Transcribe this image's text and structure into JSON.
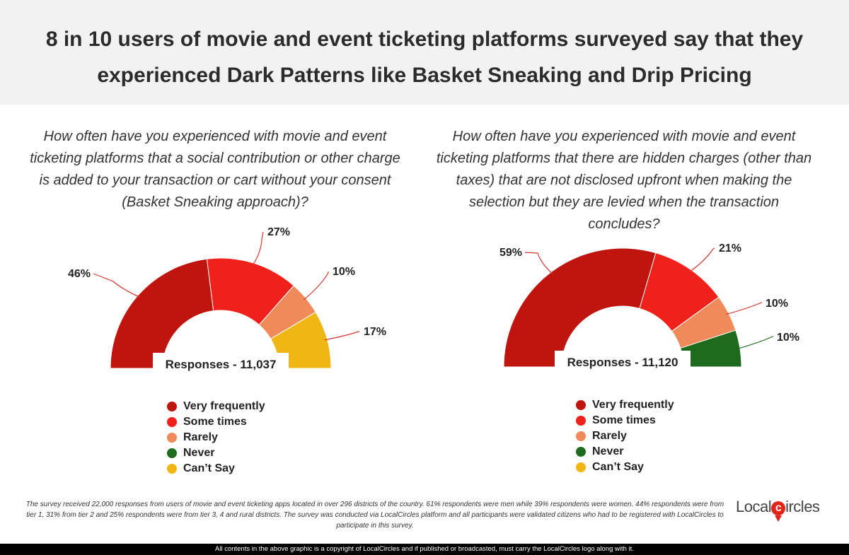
{
  "title": "8 in 10 users of movie and event ticketing platforms surveyed say that they experienced Dark Patterns like Basket Sneaking and Drip Pricing",
  "colors": {
    "very_frequently": "#c0140e",
    "some_times": "#f0211a",
    "rarely": "#f08a5b",
    "never": "#1e6b1e",
    "cant_say": "#f1b613",
    "leader_line": "#d9352a"
  },
  "legend": [
    "Very frequently",
    "Some times",
    "Rarely",
    "Never",
    "Can’t Say"
  ],
  "chart_data": [
    {
      "type": "pie",
      "subtype": "semi-donut",
      "title": "How often have you experienced with movie and event ticketing platforms that a social contribution or other charge is added to your transaction or cart without your consent (Basket Sneaking approach)?",
      "responses_label": "Responses - 11,037",
      "categories": [
        "Very frequently",
        "Some times",
        "Rarely",
        "Never",
        "Can’t Say"
      ],
      "values": [
        46,
        27,
        10,
        0,
        17
      ],
      "labels": [
        "46%",
        "27%",
        "10%",
        "",
        "17%"
      ]
    },
    {
      "type": "pie",
      "subtype": "semi-donut",
      "title": "How often have you experienced with movie and event ticketing platforms that there are hidden charges (other than taxes) that are not disclosed upfront when making the selection but they are levied when the transaction concludes?",
      "responses_label": "Responses - 11,120",
      "categories": [
        "Very frequently",
        "Some times",
        "Rarely",
        "Never",
        "Can’t Say"
      ],
      "values": [
        59,
        21,
        10,
        10,
        0
      ],
      "labels": [
        "59%",
        "21%",
        "10%",
        "10%",
        ""
      ]
    }
  ],
  "footnote": "The survey received 22,000 responses from users of movie and event ticketing apps located in over 296 districts of the country. 61% respondents were men while 39% respondents were women. 44% respondents were from tier 1, 31% from tier 2 and 25% respondents were from tier 3, 4 and rural districts. The survey was conducted via LocalCircles platform and all participants were validated citizens who had to be registered with LocalCircles to participate in this survey.",
  "logo": {
    "text_before": "Local",
    "text_after": "ircles"
  },
  "copyright": "All contents in the above graphic is a copyright of LocalCircles and if published or broadcasted, must carry the LocalCircles logo along with it."
}
